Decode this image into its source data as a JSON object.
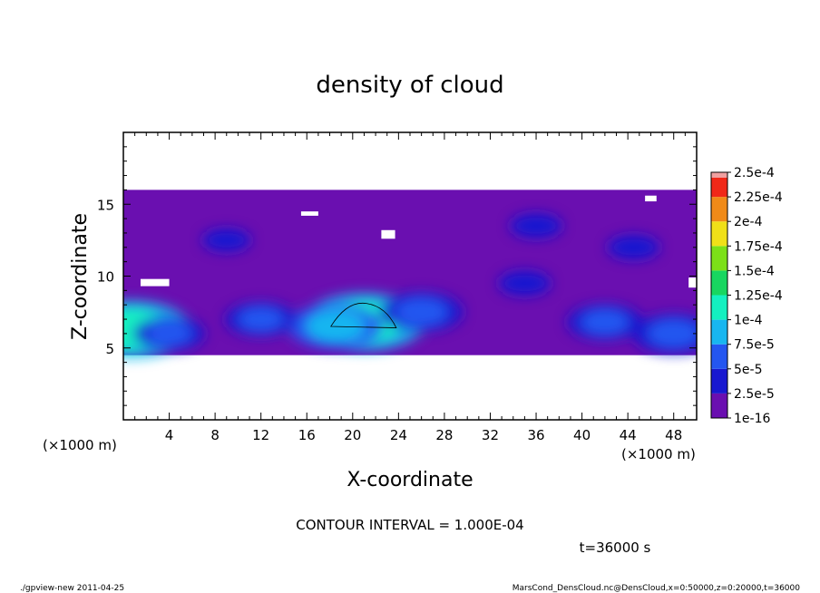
{
  "chart_data": {
    "type": "heatmap",
    "title": "density of cloud",
    "xlabel": "X-coordinate",
    "ylabel": "Z-coordinate",
    "x_unit": "(×1000 m)",
    "xlim": [
      0,
      50
    ],
    "ylim": [
      0,
      20
    ],
    "x_ticks": [
      4,
      8,
      12,
      16,
      20,
      24,
      28,
      32,
      36,
      40,
      44,
      48
    ],
    "y_ticks": [
      5,
      10,
      15
    ],
    "colorbar": {
      "labels": [
        "1e-16",
        "2.5e-5",
        "5e-5",
        "7.5e-5",
        "1e-4",
        "1.25e-4",
        "1.5e-4",
        "1.75e-4",
        "2e-4",
        "2.25e-4",
        "2.5e-4"
      ],
      "colors": [
        "#6a0fb0",
        "#1818d0",
        "#2456f0",
        "#18b6f0",
        "#14f0c0",
        "#18d660",
        "#7ce018",
        "#f0e018",
        "#f08a18",
        "#f02818",
        "#f0a0a0"
      ]
    },
    "cloud_layer_z": [
      4.5,
      16
    ],
    "features": [
      {
        "x": 21,
        "z": 6.8,
        "value": 0.00012
      },
      {
        "x": 0.6,
        "z": 6.3,
        "value": 0.00012
      },
      {
        "x": 18.5,
        "z": 6.5,
        "value": 8.5e-05
      },
      {
        "x": 26,
        "z": 7.5,
        "value": 7e-05
      },
      {
        "x": 4,
        "z": 6,
        "value": 5.5e-05
      },
      {
        "x": 12,
        "z": 7,
        "value": 5.5e-05
      },
      {
        "x": 42,
        "z": 6.8,
        "value": 6e-05
      },
      {
        "x": 48,
        "z": 6,
        "value": 7e-05
      },
      {
        "x": 35,
        "z": 9.5,
        "value": 3e-05
      },
      {
        "x": 36,
        "z": 13.5,
        "value": 3e-05
      },
      {
        "x": 44.5,
        "z": 12,
        "value": 3e-05
      },
      {
        "x": 9,
        "z": 12.5,
        "value": 2.5e-05
      }
    ],
    "contour_interval": "CONTOUR INTERVAL = 1.000E-04",
    "time_label": "t=36000 s"
  },
  "footer": {
    "left": "./gpview-new   2011-04-25",
    "right": "MarsCond_DensCloud.nc@DensCloud,x=0:50000,z=0:20000,t=36000"
  }
}
